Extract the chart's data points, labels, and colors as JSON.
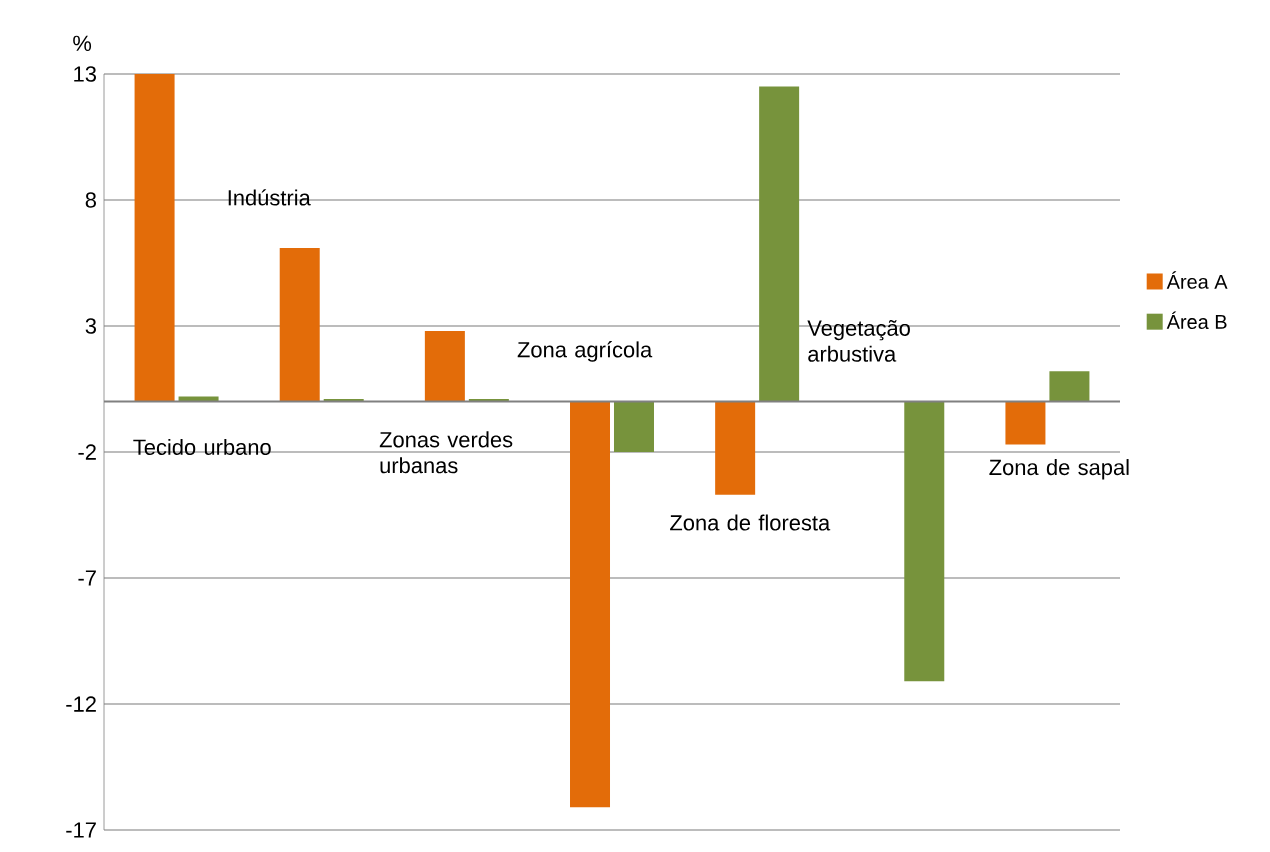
{
  "chart_data": {
    "type": "bar",
    "ylabel": "%",
    "categories": [
      "Tecido urbano",
      "Indústria",
      "Zonas verdes urbanas",
      "Zona agrícola",
      "Zona de floresta",
      "Vegetação arbustiva",
      "Zona de sapal"
    ],
    "series": [
      {
        "name": "Área A",
        "color": "#e36c09",
        "values": [
          13.0,
          6.1,
          2.8,
          -16.1,
          -3.7,
          0,
          -1.7
        ]
      },
      {
        "name": "Área B",
        "color": "#77933c",
        "values": [
          0.2,
          0.1,
          0.1,
          -2.0,
          12.5,
          -11.1,
          1.2
        ]
      }
    ],
    "ylim": [
      -17,
      13
    ],
    "yticks": [
      13,
      8,
      3,
      -2,
      -7,
      -12,
      -17
    ],
    "grid": "y",
    "legend": "right"
  }
}
